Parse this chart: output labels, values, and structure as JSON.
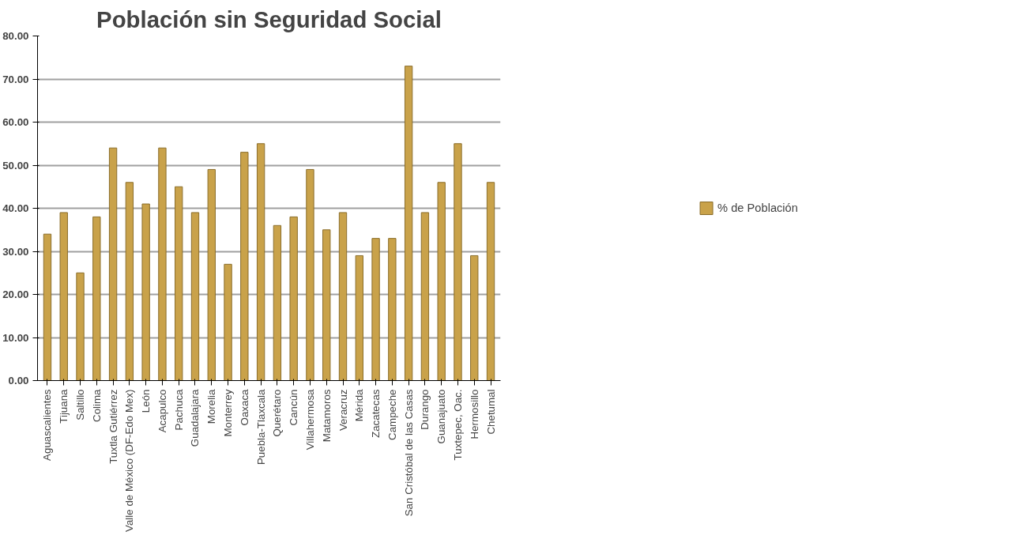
{
  "chart_data": {
    "type": "bar",
    "title": "Población sin Seguridad Social",
    "categories": [
      "Aguascalientes",
      "Tijuana",
      "Saltillo",
      "Colima",
      "Tuxtla Gutiérrez",
      "Valle de México (DF-Edo Mex)",
      "León",
      "Acapulco",
      "Pachuca",
      "Guadalajara",
      "Morelia",
      "Monterrey",
      "Oaxaca",
      "Puebla-Tlaxcala",
      "Querétaro",
      "Cancún",
      "Villahermosa",
      "Matamoros",
      "Veracruz",
      "Mérida",
      "Zacatecas",
      "Campeche",
      "San Cristóbal de las Casas",
      "Durango",
      "Guanajuato",
      "Tuxtepec, Oac.",
      "Hermosillo",
      "Chetumal"
    ],
    "series": [
      {
        "name": "% de Población",
        "color": "#c9a24a",
        "values": [
          34,
          39,
          25,
          38,
          54,
          46,
          41,
          54,
          45,
          39,
          49,
          27,
          53,
          55,
          36,
          38,
          49,
          35,
          39,
          29,
          33,
          33,
          73,
          39,
          46,
          55,
          29,
          46
        ]
      }
    ],
    "ylim": [
      0,
      80
    ],
    "yticks": [
      {
        "value": 0,
        "label": "0.00"
      },
      {
        "value": 10,
        "label": "10.00"
      },
      {
        "value": 20,
        "label": "20.00"
      },
      {
        "value": 30,
        "label": "30.00"
      },
      {
        "value": 40,
        "label": "40.00"
      },
      {
        "value": 50,
        "label": "50.00"
      },
      {
        "value": 60,
        "label": "60.00"
      },
      {
        "value": 70,
        "label": "70.00"
      },
      {
        "value": 80,
        "label": "80.00"
      }
    ],
    "grid": "y",
    "legend": "right"
  }
}
